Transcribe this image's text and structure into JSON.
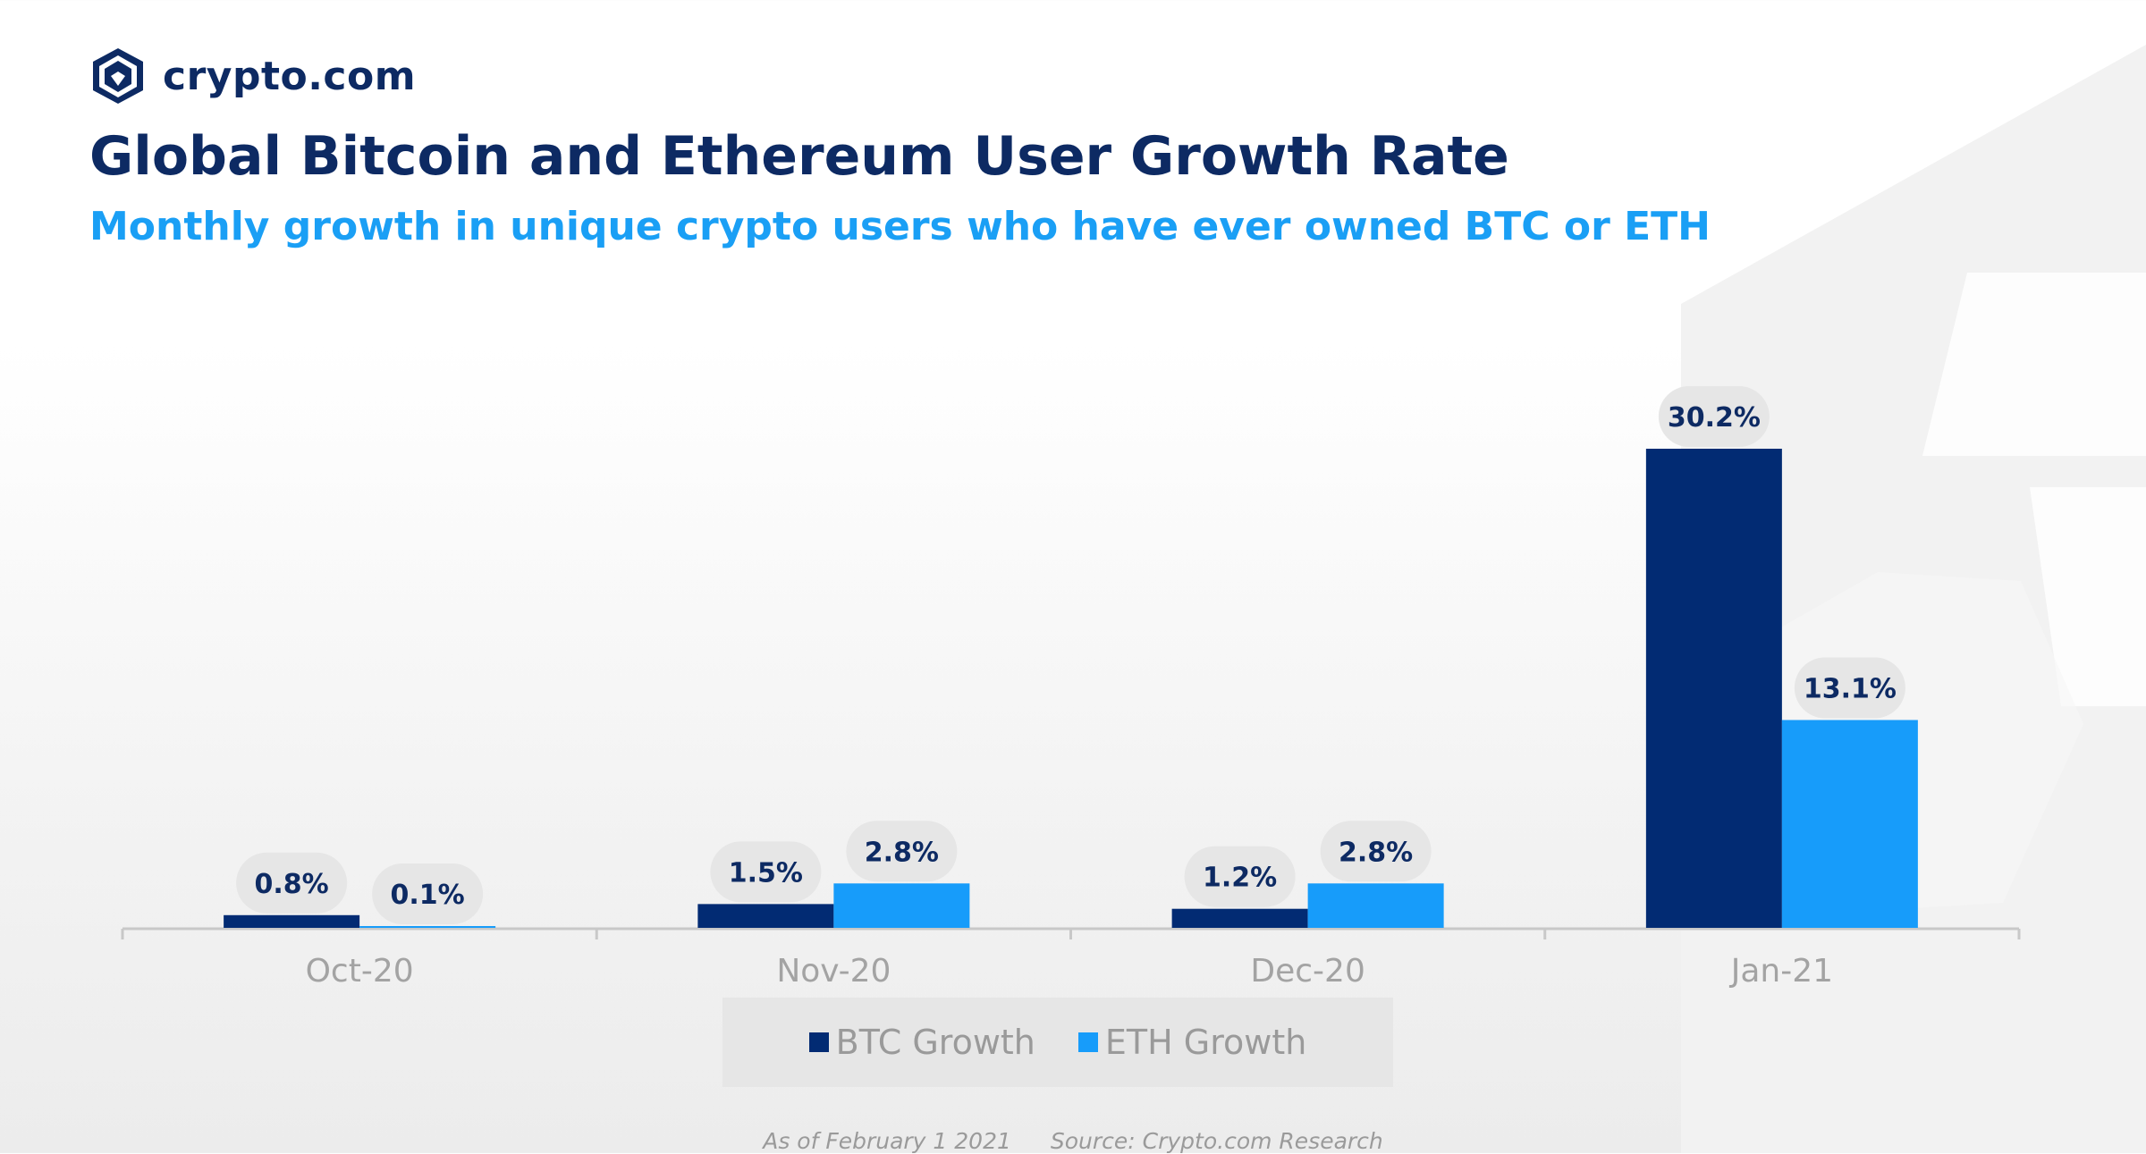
{
  "brand": {
    "name": "crypto.com",
    "logo_icon": "lion-shield-icon",
    "color": "#0d2a63"
  },
  "header": {
    "title": "Global Bitcoin and Ethereum User Growth Rate",
    "subtitle": "Monthly growth in unique crypto users who have ever owned BTC or ETH"
  },
  "colors": {
    "btc": "#022b73",
    "eth": "#179cfa",
    "label_bg": "#e6e6e6",
    "label_text": "#0d2a63",
    "axis": "#c8c8c8",
    "tick_text": "#a3a3a3"
  },
  "chart_data": {
    "type": "bar",
    "categories": [
      "Oct-20",
      "Nov-20",
      "Dec-20",
      "Jan-21"
    ],
    "series": [
      {
        "name": "BTC Growth",
        "values": [
          0.8,
          1.5,
          1.2,
          30.2
        ],
        "labels": [
          "0.8%",
          "1.5%",
          "1.2%",
          "30.2%"
        ]
      },
      {
        "name": "ETH Growth",
        "values": [
          0.1,
          2.8,
          2.8,
          13.1
        ],
        "labels": [
          "0.1%",
          "2.8%",
          "2.8%",
          "13.1%"
        ]
      }
    ],
    "ylim": [
      0,
      30.2
    ],
    "grid": false,
    "legend_position": "bottom-center"
  },
  "footer": {
    "as_of": "As of February 1 2021",
    "source": "Source: Crypto.com Research"
  }
}
